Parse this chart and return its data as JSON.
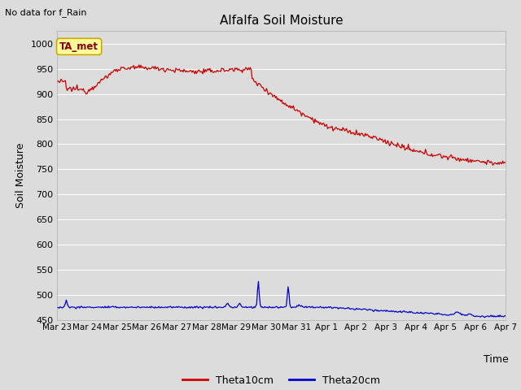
{
  "title": "Alfalfa Soil Moisture",
  "topleft_text": "No data for f_Rain",
  "ylabel": "Soil Moisture",
  "xlabel": "Time",
  "ylim": [
    450,
    1025
  ],
  "yticks": [
    450,
    500,
    550,
    600,
    650,
    700,
    750,
    800,
    850,
    900,
    950,
    1000
  ],
  "bg_color": "#dcdcdc",
  "grid_color": "#ffffff",
  "legend_label1": "Theta10cm",
  "legend_label2": "Theta20cm",
  "line1_color": "#cc0000",
  "line2_color": "#0000cc",
  "annotation_text": "TA_met",
  "annotation_bg": "#ffff99",
  "annotation_border": "#ccaa00",
  "n_points": 500,
  "x_start": 0,
  "x_end": 15,
  "xtick_labels": [
    "Mar 23",
    "Mar 24",
    "Mar 25",
    "Mar 26",
    "Mar 27",
    "Mar 28",
    "Mar 29",
    "Mar 30",
    "Mar 31",
    "Apr 1",
    "Apr 2",
    "Apr 3",
    "Apr 4",
    "Apr 5",
    "Apr 6",
    "Apr 7"
  ],
  "xtick_positions": [
    0,
    1,
    2,
    3,
    4,
    5,
    6,
    7,
    8,
    9,
    10,
    11,
    12,
    13,
    14,
    15
  ]
}
